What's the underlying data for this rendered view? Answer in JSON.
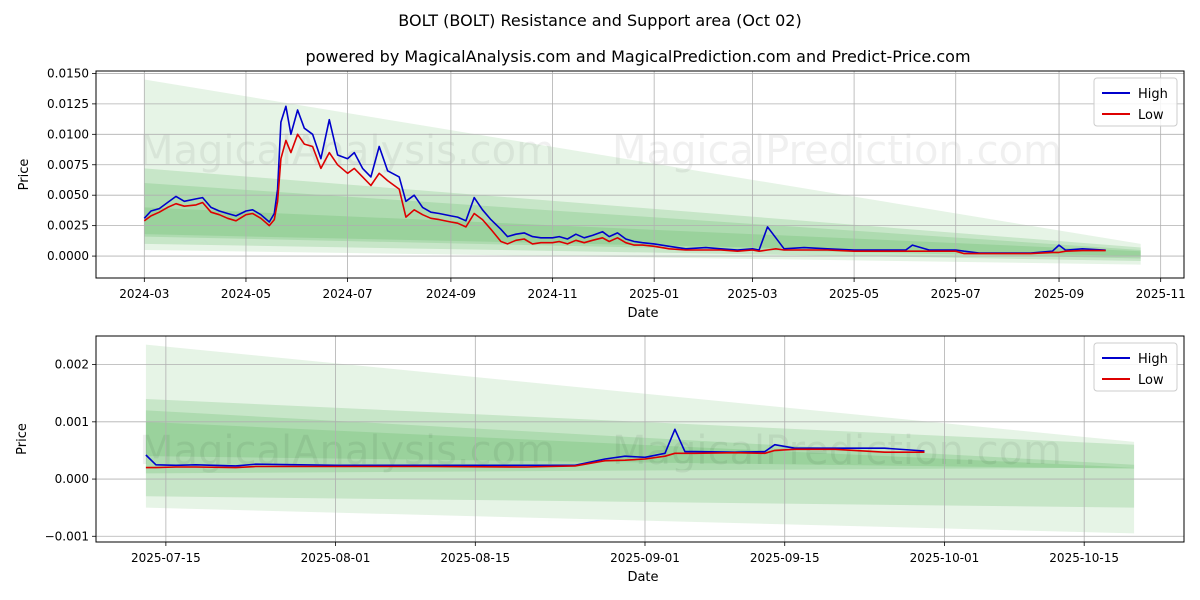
{
  "title": "BOLT (BOLT) Resistance and Support area (Oct 02)",
  "subtitle": "powered by MagicalAnalysis.com and MagicalPrediction.com and Predict-Price.com",
  "watermarks": [
    "MagicalAnalysis.com",
    "MagicalPrediction.com"
  ],
  "colors": {
    "high": "#0000cc",
    "low": "#dd0000",
    "band": "#4caf50",
    "grid": "#b0b0b0"
  },
  "chart_data": [
    {
      "type": "line",
      "xlabel": "Date",
      "ylabel": "Price",
      "xlim": [
        "2024-02-01",
        "2025-11-15"
      ],
      "ylim": [
        -0.0018,
        0.0152
      ],
      "x_ticks": [
        "2024-03-01",
        "2024-05-01",
        "2024-07-01",
        "2024-09-01",
        "2024-11-01",
        "2025-01-01",
        "2025-03-01",
        "2025-05-01",
        "2025-07-01",
        "2025-09-01",
        "2025-11-01"
      ],
      "x_tick_labels": [
        "2024-03",
        "2024-05",
        "2024-07",
        "2024-09",
        "2024-11",
        "2025-01",
        "2025-03",
        "2025-05",
        "2025-07",
        "2025-09",
        "2025-11"
      ],
      "y_ticks": [
        0,
        0.0025,
        0.005,
        0.0075,
        0.01,
        0.0125,
        0.015
      ],
      "y_tick_labels": [
        "0.0000",
        "0.0025",
        "0.0050",
        "0.0075",
        "0.0100",
        "0.0125",
        "0.0150"
      ],
      "grid": true,
      "legend": "top-right",
      "series": [
        {
          "name": "High",
          "x": [
            "2024-03-01",
            "2024-03-05",
            "2024-03-10",
            "2024-03-15",
            "2024-03-20",
            "2024-03-25",
            "2024-04-01",
            "2024-04-05",
            "2024-04-10",
            "2024-04-15",
            "2024-04-20",
            "2024-04-25",
            "2024-05-01",
            "2024-05-05",
            "2024-05-10",
            "2024-05-15",
            "2024-05-18",
            "2024-05-20",
            "2024-05-22",
            "2024-05-25",
            "2024-05-28",
            "2024-06-01",
            "2024-06-05",
            "2024-06-10",
            "2024-06-15",
            "2024-06-20",
            "2024-06-25",
            "2024-07-01",
            "2024-07-05",
            "2024-07-10",
            "2024-07-15",
            "2024-07-20",
            "2024-07-25",
            "2024-08-01",
            "2024-08-05",
            "2024-08-10",
            "2024-08-15",
            "2024-08-20",
            "2024-08-25",
            "2024-09-01",
            "2024-09-05",
            "2024-09-10",
            "2024-09-15",
            "2024-09-20",
            "2024-09-25",
            "2024-10-01",
            "2024-10-05",
            "2024-10-10",
            "2024-10-15",
            "2024-10-20",
            "2024-10-25",
            "2024-11-01",
            "2024-11-05",
            "2024-11-10",
            "2024-11-15",
            "2024-11-20",
            "2024-11-25",
            "2024-12-01",
            "2024-12-05",
            "2024-12-10",
            "2024-12-15",
            "2024-12-20",
            "2024-12-25",
            "2025-01-01",
            "2025-01-10",
            "2025-01-20",
            "2025-02-01",
            "2025-02-10",
            "2025-02-20",
            "2025-03-01",
            "2025-03-05",
            "2025-03-10",
            "2025-03-15",
            "2025-03-20",
            "2025-04-01",
            "2025-04-15",
            "2025-05-01",
            "2025-05-15",
            "2025-06-01",
            "2025-06-05",
            "2025-06-15",
            "2025-07-01",
            "2025-07-06",
            "2025-07-15",
            "2025-08-01",
            "2025-08-15",
            "2025-08-28",
            "2025-09-01",
            "2025-09-05",
            "2025-09-15",
            "2025-09-29"
          ],
          "y": [
            0.0031,
            0.0037,
            0.0039,
            0.0044,
            0.0049,
            0.0045,
            0.0047,
            0.0048,
            0.004,
            0.0037,
            0.0035,
            0.0033,
            0.0037,
            0.0038,
            0.0034,
            0.0028,
            0.0035,
            0.0055,
            0.011,
            0.0123,
            0.01,
            0.012,
            0.0105,
            0.01,
            0.008,
            0.0112,
            0.0083,
            0.008,
            0.0085,
            0.0072,
            0.0065,
            0.009,
            0.007,
            0.0065,
            0.0045,
            0.005,
            0.004,
            0.0036,
            0.0035,
            0.0033,
            0.0032,
            0.0029,
            0.0048,
            0.0038,
            0.003,
            0.0022,
            0.0016,
            0.0018,
            0.0019,
            0.0016,
            0.0015,
            0.0015,
            0.0016,
            0.0014,
            0.0018,
            0.0015,
            0.0017,
            0.002,
            0.0016,
            0.0019,
            0.0014,
            0.0012,
            0.0011,
            0.001,
            0.0008,
            0.0006,
            0.0007,
            0.0006,
            0.0005,
            0.0006,
            0.0005,
            0.0024,
            0.0015,
            0.0006,
            0.0007,
            0.0006,
            0.0005,
            0.0005,
            0.0005,
            0.0009,
            0.0005,
            0.0005,
            0.0004,
            0.00025,
            0.00025,
            0.00025,
            0.0004,
            0.0009,
            0.00048,
            0.0006,
            0.00048
          ]
        },
        {
          "name": "Low",
          "x": [
            "2024-03-01",
            "2024-03-05",
            "2024-03-10",
            "2024-03-15",
            "2024-03-20",
            "2024-03-25",
            "2024-04-01",
            "2024-04-05",
            "2024-04-10",
            "2024-04-15",
            "2024-04-20",
            "2024-04-25",
            "2024-05-01",
            "2024-05-05",
            "2024-05-10",
            "2024-05-15",
            "2024-05-18",
            "2024-05-20",
            "2024-05-22",
            "2024-05-25",
            "2024-05-28",
            "2024-06-01",
            "2024-06-05",
            "2024-06-10",
            "2024-06-15",
            "2024-06-20",
            "2024-06-25",
            "2024-07-01",
            "2024-07-05",
            "2024-07-10",
            "2024-07-15",
            "2024-07-20",
            "2024-07-25",
            "2024-08-01",
            "2024-08-05",
            "2024-08-10",
            "2024-08-15",
            "2024-08-20",
            "2024-08-25",
            "2024-09-01",
            "2024-09-05",
            "2024-09-10",
            "2024-09-15",
            "2024-09-20",
            "2024-09-25",
            "2024-10-01",
            "2024-10-05",
            "2024-10-10",
            "2024-10-15",
            "2024-10-20",
            "2024-10-25",
            "2024-11-01",
            "2024-11-05",
            "2024-11-10",
            "2024-11-15",
            "2024-11-20",
            "2024-11-25",
            "2024-12-01",
            "2024-12-05",
            "2024-12-10",
            "2024-12-15",
            "2024-12-20",
            "2024-12-25",
            "2025-01-01",
            "2025-01-10",
            "2025-01-20",
            "2025-02-01",
            "2025-02-10",
            "2025-02-20",
            "2025-03-01",
            "2025-03-05",
            "2025-03-10",
            "2025-03-15",
            "2025-03-20",
            "2025-04-01",
            "2025-04-15",
            "2025-05-01",
            "2025-05-15",
            "2025-06-01",
            "2025-06-05",
            "2025-06-15",
            "2025-07-01",
            "2025-07-06",
            "2025-07-15",
            "2025-08-01",
            "2025-08-15",
            "2025-08-28",
            "2025-09-01",
            "2025-09-05",
            "2025-09-15",
            "2025-09-29"
          ],
          "y": [
            0.0029,
            0.0033,
            0.0036,
            0.004,
            0.0043,
            0.0041,
            0.0042,
            0.0044,
            0.0036,
            0.0034,
            0.0031,
            0.0029,
            0.0034,
            0.0035,
            0.0031,
            0.0025,
            0.003,
            0.0045,
            0.008,
            0.0095,
            0.0085,
            0.01,
            0.0092,
            0.009,
            0.0072,
            0.0085,
            0.0075,
            0.0068,
            0.0072,
            0.0065,
            0.0058,
            0.0068,
            0.0062,
            0.0055,
            0.0032,
            0.0038,
            0.0034,
            0.0031,
            0.003,
            0.0028,
            0.0027,
            0.0024,
            0.0035,
            0.003,
            0.0022,
            0.0012,
            0.001,
            0.0013,
            0.0014,
            0.001,
            0.0011,
            0.0011,
            0.0012,
            0.001,
            0.0013,
            0.0011,
            0.0013,
            0.0015,
            0.0012,
            0.0015,
            0.0011,
            0.0009,
            0.0009,
            0.0008,
            0.0006,
            0.0005,
            0.0005,
            0.0005,
            0.0004,
            0.0005,
            0.0004,
            0.0005,
            0.0006,
            0.0005,
            0.0005,
            0.0005,
            0.0004,
            0.0004,
            0.0004,
            0.0004,
            0.0004,
            0.0004,
            0.0002,
            0.0002,
            0.0002,
            0.0002,
            0.0003,
            0.0003,
            0.0004,
            0.00045,
            0.00045
          ]
        }
      ],
      "bands": [
        {
          "x0": "2024-03-01",
          "x1": "2025-10-20",
          "upper": [
            0.0145,
            0.001
          ],
          "lower": [
            0.0005,
            -0.0007
          ]
        },
        {
          "x0": "2024-03-01",
          "x1": "2025-10-20",
          "upper": [
            0.0072,
            0.0007
          ],
          "lower": [
            0.001,
            -0.0004
          ]
        },
        {
          "x0": "2024-03-01",
          "x1": "2025-10-20",
          "upper": [
            0.006,
            0.0005
          ],
          "lower": [
            0.0016,
            -0.0002
          ]
        },
        {
          "x0": "2024-03-01",
          "x1": "2025-10-20",
          "upper": [
            0.004,
            0.0004
          ],
          "lower": [
            0.0018,
            0.0
          ]
        }
      ]
    },
    {
      "type": "line",
      "xlabel": "Date",
      "ylabel": "Price",
      "xlim": [
        "2025-07-08",
        "2025-10-25"
      ],
      "ylim": [
        -0.0011,
        0.0025
      ],
      "x_ticks": [
        "2025-07-15",
        "2025-08-01",
        "2025-08-15",
        "2025-09-01",
        "2025-09-15",
        "2025-10-01",
        "2025-10-15"
      ],
      "x_tick_labels": [
        "2025-07-15",
        "2025-08-01",
        "2025-08-15",
        "2025-09-01",
        "2025-09-15",
        "2025-10-01",
        "2025-10-15"
      ],
      "y_ticks": [
        -0.001,
        0,
        0.001,
        0.002
      ],
      "y_tick_labels": [
        "−0.001",
        "0.000",
        "0.001",
        "0.002"
      ],
      "grid": true,
      "legend": "top-right",
      "series": [
        {
          "name": "High",
          "x": [
            "2025-07-13",
            "2025-07-14",
            "2025-07-16",
            "2025-07-18",
            "2025-07-22",
            "2025-07-24",
            "2025-08-01",
            "2025-08-10",
            "2025-08-20",
            "2025-08-25",
            "2025-08-28",
            "2025-08-30",
            "2025-09-01",
            "2025-09-03",
            "2025-09-04",
            "2025-09-05",
            "2025-09-06",
            "2025-09-10",
            "2025-09-13",
            "2025-09-14",
            "2025-09-16",
            "2025-09-20",
            "2025-09-25",
            "2025-09-29"
          ],
          "y": [
            0.00042,
            0.00025,
            0.00024,
            0.00025,
            0.00023,
            0.00026,
            0.00024,
            0.00024,
            0.00024,
            0.00024,
            0.00035,
            0.0004,
            0.00038,
            0.00045,
            0.00087,
            0.00048,
            0.00048,
            0.00047,
            0.00048,
            0.0006,
            0.00054,
            0.00054,
            0.00054,
            0.00049
          ]
        },
        {
          "name": "Low",
          "x": [
            "2025-07-13",
            "2025-07-14",
            "2025-07-16",
            "2025-07-18",
            "2025-07-22",
            "2025-07-24",
            "2025-08-01",
            "2025-08-10",
            "2025-08-20",
            "2025-08-25",
            "2025-08-28",
            "2025-08-30",
            "2025-09-01",
            "2025-09-03",
            "2025-09-04",
            "2025-09-05",
            "2025-09-06",
            "2025-09-10",
            "2025-09-13",
            "2025-09-14",
            "2025-09-16",
            "2025-09-20",
            "2025-09-25",
            "2025-09-29"
          ],
          "y": [
            0.0002,
            0.0002,
            0.00021,
            0.00021,
            0.0002,
            0.00022,
            0.00022,
            0.00022,
            0.00021,
            0.00023,
            0.00032,
            0.00033,
            0.00035,
            0.0004,
            0.00045,
            0.00045,
            0.00045,
            0.00046,
            0.00045,
            0.0005,
            0.00052,
            0.00052,
            0.00047,
            0.00047
          ]
        }
      ],
      "bands": [
        {
          "x0": "2025-07-13",
          "x1": "2025-10-20",
          "upper": [
            0.00235,
            0.00065
          ],
          "lower": [
            -0.0005,
            -0.00095
          ]
        },
        {
          "x0": "2025-07-13",
          "x1": "2025-10-20",
          "upper": [
            0.0014,
            0.0006
          ],
          "lower": [
            -0.0003,
            -0.0005
          ]
        },
        {
          "x0": "2025-07-13",
          "x1": "2025-10-20",
          "upper": [
            0.0012,
            0.00025
          ],
          "lower": [
            0.0001,
            0.0002
          ]
        },
        {
          "x0": "2025-07-13",
          "x1": "2025-10-20",
          "upper": [
            0.001,
            0.0002
          ],
          "lower": [
            0.0004,
            0.00018
          ]
        }
      ]
    }
  ]
}
